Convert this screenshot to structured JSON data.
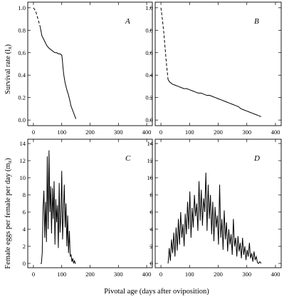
{
  "chart_data": [
    {
      "panel": "A",
      "type": "line",
      "xlim": [
        -20,
        420
      ],
      "ylim": [
        -0.05,
        1.05
      ],
      "xticks": [
        0,
        100,
        200,
        300,
        400
      ],
      "yticks": [
        0.0,
        0.2,
        0.4,
        0.6,
        0.8,
        1.0
      ],
      "ylabel": "Survival rate (lx)",
      "dashed_segment": {
        "x": [
          0,
          8,
          16,
          24
        ],
        "y": [
          1.0,
          0.97,
          0.9,
          0.83
        ]
      },
      "x": [
        24,
        30,
        36,
        42,
        48,
        55,
        60,
        65,
        70,
        76,
        82,
        88,
        94,
        98,
        100,
        102,
        104,
        106,
        108,
        110,
        112,
        114,
        116,
        118,
        120,
        122,
        124,
        126,
        128,
        130,
        132,
        135,
        138,
        141,
        144,
        147,
        150
      ],
      "y": [
        0.83,
        0.75,
        0.72,
        0.69,
        0.66,
        0.64,
        0.63,
        0.62,
        0.61,
        0.6,
        0.6,
        0.59,
        0.59,
        0.58,
        0.58,
        0.54,
        0.48,
        0.43,
        0.39,
        0.36,
        0.33,
        0.31,
        0.29,
        0.27,
        0.25,
        0.24,
        0.22,
        0.2,
        0.18,
        0.16,
        0.13,
        0.11,
        0.09,
        0.07,
        0.05,
        0.03,
        0.01
      ]
    },
    {
      "panel": "B",
      "type": "line",
      "xlim": [
        -20,
        420
      ],
      "ylim": [
        -0.05,
        1.05
      ],
      "xticks": [
        0,
        100,
        200,
        300,
        400
      ],
      "yticks": [
        0.0,
        0.2,
        0.4,
        0.6,
        0.8,
        1.0
      ],
      "dashed_segment": {
        "x": [
          0,
          5,
          10,
          15,
          20,
          25
        ],
        "y": [
          1.0,
          0.9,
          0.78,
          0.63,
          0.48,
          0.36
        ]
      },
      "x": [
        25,
        30,
        40,
        50,
        60,
        70,
        80,
        90,
        100,
        110,
        120,
        130,
        140,
        150,
        160,
        170,
        180,
        190,
        200,
        210,
        220,
        230,
        240,
        250,
        260,
        270,
        280,
        290,
        300,
        310,
        320,
        330,
        340,
        350
      ],
      "y": [
        0.36,
        0.34,
        0.32,
        0.31,
        0.3,
        0.29,
        0.28,
        0.28,
        0.27,
        0.26,
        0.25,
        0.24,
        0.24,
        0.23,
        0.22,
        0.22,
        0.21,
        0.2,
        0.19,
        0.18,
        0.17,
        0.16,
        0.15,
        0.14,
        0.13,
        0.12,
        0.1,
        0.09,
        0.08,
        0.07,
        0.06,
        0.05,
        0.04,
        0.03
      ]
    },
    {
      "panel": "C",
      "type": "line",
      "xlim": [
        -20,
        420
      ],
      "ylim": [
        -0.5,
        14.5
      ],
      "xticks": [
        0,
        100,
        200,
        300,
        400
      ],
      "yticks": [
        0,
        2,
        4,
        6,
        8,
        10,
        12,
        14
      ],
      "ylabel": "Female eggs per female per day (mx)",
      "x": [
        25,
        28,
        31,
        34,
        37,
        40,
        43,
        46,
        49,
        52,
        55,
        58,
        61,
        64,
        67,
        70,
        73,
        76,
        79,
        82,
        85,
        88,
        91,
        94,
        97,
        100,
        103,
        106,
        109,
        112,
        115,
        118,
        121,
        124,
        127,
        130,
        133,
        136,
        139,
        142,
        145,
        148,
        150
      ],
      "y": [
        0,
        0,
        1.2,
        6.5,
        8.5,
        3.0,
        7.2,
        2.5,
        12.5,
        4.0,
        13.2,
        6.0,
        9.0,
        3.5,
        8.8,
        5.2,
        9.6,
        2.2,
        7.5,
        4.8,
        6.8,
        1.8,
        9.4,
        3.6,
        5.5,
        10.8,
        2.8,
        6.2,
        9.2,
        4.2,
        7.0,
        2.0,
        5.6,
        1.2,
        3.8,
        0.8,
        1.0,
        0.2,
        0.6,
        0,
        0.3,
        0,
        0
      ]
    },
    {
      "panel": "D",
      "type": "line",
      "xlim": [
        -20,
        420
      ],
      "ylim": [
        -0.5,
        14.5
      ],
      "xticks": [
        0,
        100,
        200,
        300,
        400
      ],
      "yticks": [
        0,
        2,
        4,
        6,
        8,
        10,
        12,
        14
      ],
      "x": [
        25,
        29,
        33,
        37,
        41,
        45,
        49,
        53,
        57,
        61,
        65,
        69,
        73,
        77,
        81,
        85,
        89,
        93,
        97,
        101,
        105,
        109,
        113,
        117,
        121,
        125,
        129,
        133,
        137,
        141,
        145,
        149,
        153,
        157,
        161,
        165,
        169,
        173,
        177,
        181,
        185,
        189,
        193,
        197,
        201,
        205,
        209,
        213,
        217,
        221,
        225,
        229,
        233,
        237,
        241,
        245,
        249,
        253,
        257,
        261,
        265,
        269,
        273,
        277,
        281,
        285,
        289,
        293,
        297,
        301,
        305,
        309,
        313,
        317,
        321,
        325,
        329,
        333,
        337,
        341,
        345,
        350
      ],
      "y": [
        0,
        1.8,
        0.3,
        2.8,
        1.2,
        3.6,
        0.8,
        4.2,
        1.5,
        5.2,
        2.2,
        6.0,
        3.0,
        4.6,
        2.0,
        5.8,
        3.4,
        7.2,
        4.0,
        8.4,
        3.0,
        6.5,
        4.2,
        8.0,
        5.5,
        7.0,
        3.8,
        9.6,
        5.0,
        8.6,
        4.4,
        7.6,
        6.0,
        10.6,
        3.8,
        9.2,
        5.2,
        8.0,
        3.4,
        7.2,
        2.6,
        6.6,
        4.2,
        5.6,
        2.2,
        9.2,
        3.0,
        5.2,
        1.6,
        6.2,
        2.8,
        4.8,
        1.4,
        4.0,
        2.2,
        3.4,
        1.0,
        5.2,
        2.0,
        3.0,
        0.8,
        3.2,
        1.4,
        2.4,
        0.6,
        3.0,
        1.0,
        2.0,
        0.4,
        1.6,
        0.8,
        2.4,
        0.6,
        1.2,
        0.2,
        1.4,
        0.4,
        0.8,
        0.1,
        0,
        0.2,
        0
      ]
    }
  ],
  "labels": {
    "panel_a": "A",
    "panel_b": "B",
    "panel_c": "C",
    "panel_d": "D",
    "xlabel": "Pivotal age (days after oviposition)",
    "ylabel_top": "Survival rate (l",
    "ylabel_top_sub": "x",
    "ylabel_top_end": ")",
    "ylabel_bottom": "Female eggs per female per day (m",
    "ylabel_bottom_sub": "x",
    "ylabel_bottom_end": ")"
  }
}
